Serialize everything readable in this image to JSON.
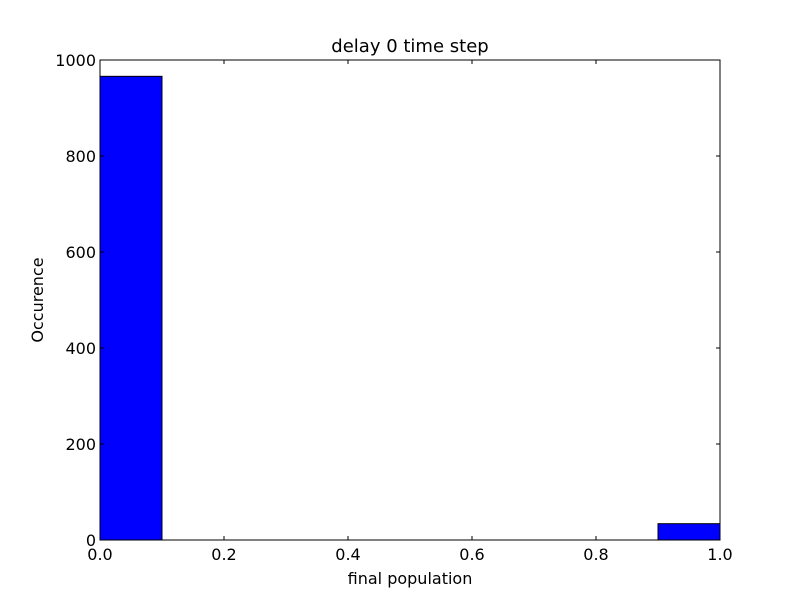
{
  "chart_data": {
    "type": "bar",
    "title": "delay 0 time step",
    "xlabel": "final population",
    "ylabel": "Occurence",
    "xlim": [
      0.0,
      1.0
    ],
    "ylim": [
      0,
      1000
    ],
    "x_ticks": [
      "0.0",
      "0.2",
      "0.4",
      "0.6",
      "0.8",
      "1.0"
    ],
    "y_ticks": [
      "0",
      "200",
      "400",
      "600",
      "800",
      "1000"
    ],
    "bins": [
      {
        "start": 0.0,
        "end": 0.1,
        "value": 966
      },
      {
        "start": 0.1,
        "end": 0.2,
        "value": 0
      },
      {
        "start": 0.2,
        "end": 0.3,
        "value": 0
      },
      {
        "start": 0.3,
        "end": 0.4,
        "value": 0
      },
      {
        "start": 0.4,
        "end": 0.5,
        "value": 0
      },
      {
        "start": 0.5,
        "end": 0.6,
        "value": 0
      },
      {
        "start": 0.6,
        "end": 0.7,
        "value": 0
      },
      {
        "start": 0.7,
        "end": 0.8,
        "value": 0
      },
      {
        "start": 0.8,
        "end": 0.9,
        "value": 0
      },
      {
        "start": 0.9,
        "end": 1.0,
        "value": 34
      }
    ],
    "bar_color": "#0000ff",
    "bar_edge_color": "#000000",
    "grid": false
  }
}
